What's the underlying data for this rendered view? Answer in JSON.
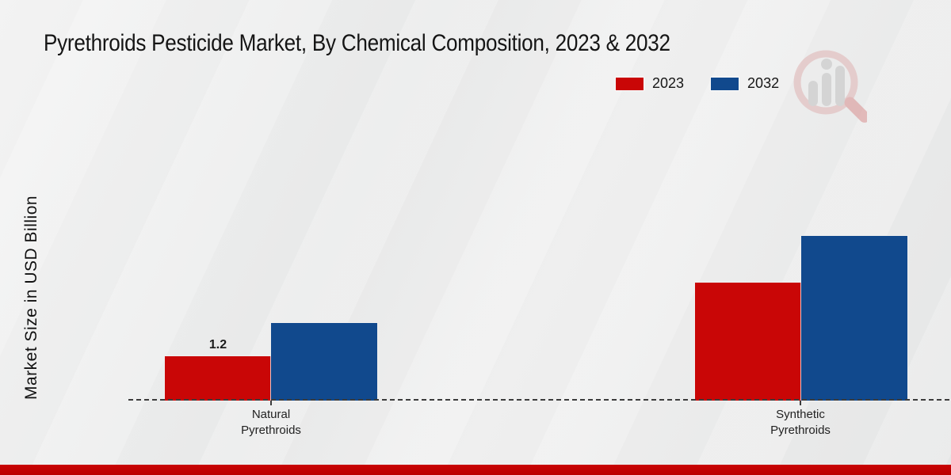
{
  "page": {
    "footer_accent_color": "#c00404",
    "background_color": "#eaeaea",
    "watermark_icon": "magnifier-bar-chart-logo"
  },
  "chart_data": {
    "type": "bar",
    "title": "Pyrethroids Pesticide Market, By Chemical Composition, 2023 & 2032",
    "ylabel": "Market Size in USD Billion",
    "xlabel": "",
    "categories": [
      "Natural Pyrethroids",
      "Synthetic Pyrethroids"
    ],
    "categories_lines": [
      [
        "Natural",
        "Pyrethroids"
      ],
      [
        "Synthetic",
        "Pyrethroids"
      ]
    ],
    "series": [
      {
        "name": "2023",
        "color": "#c90606",
        "values": [
          1.2,
          3.2
        ],
        "labels": [
          "1.2",
          ""
        ]
      },
      {
        "name": "2032",
        "color": "#11498d",
        "values": [
          2.1,
          4.45
        ],
        "labels": [
          "",
          ""
        ]
      }
    ],
    "ylim": [
      0,
      5
    ],
    "grid": false,
    "legend_position": "top-right",
    "baseline_style": "dashed"
  }
}
